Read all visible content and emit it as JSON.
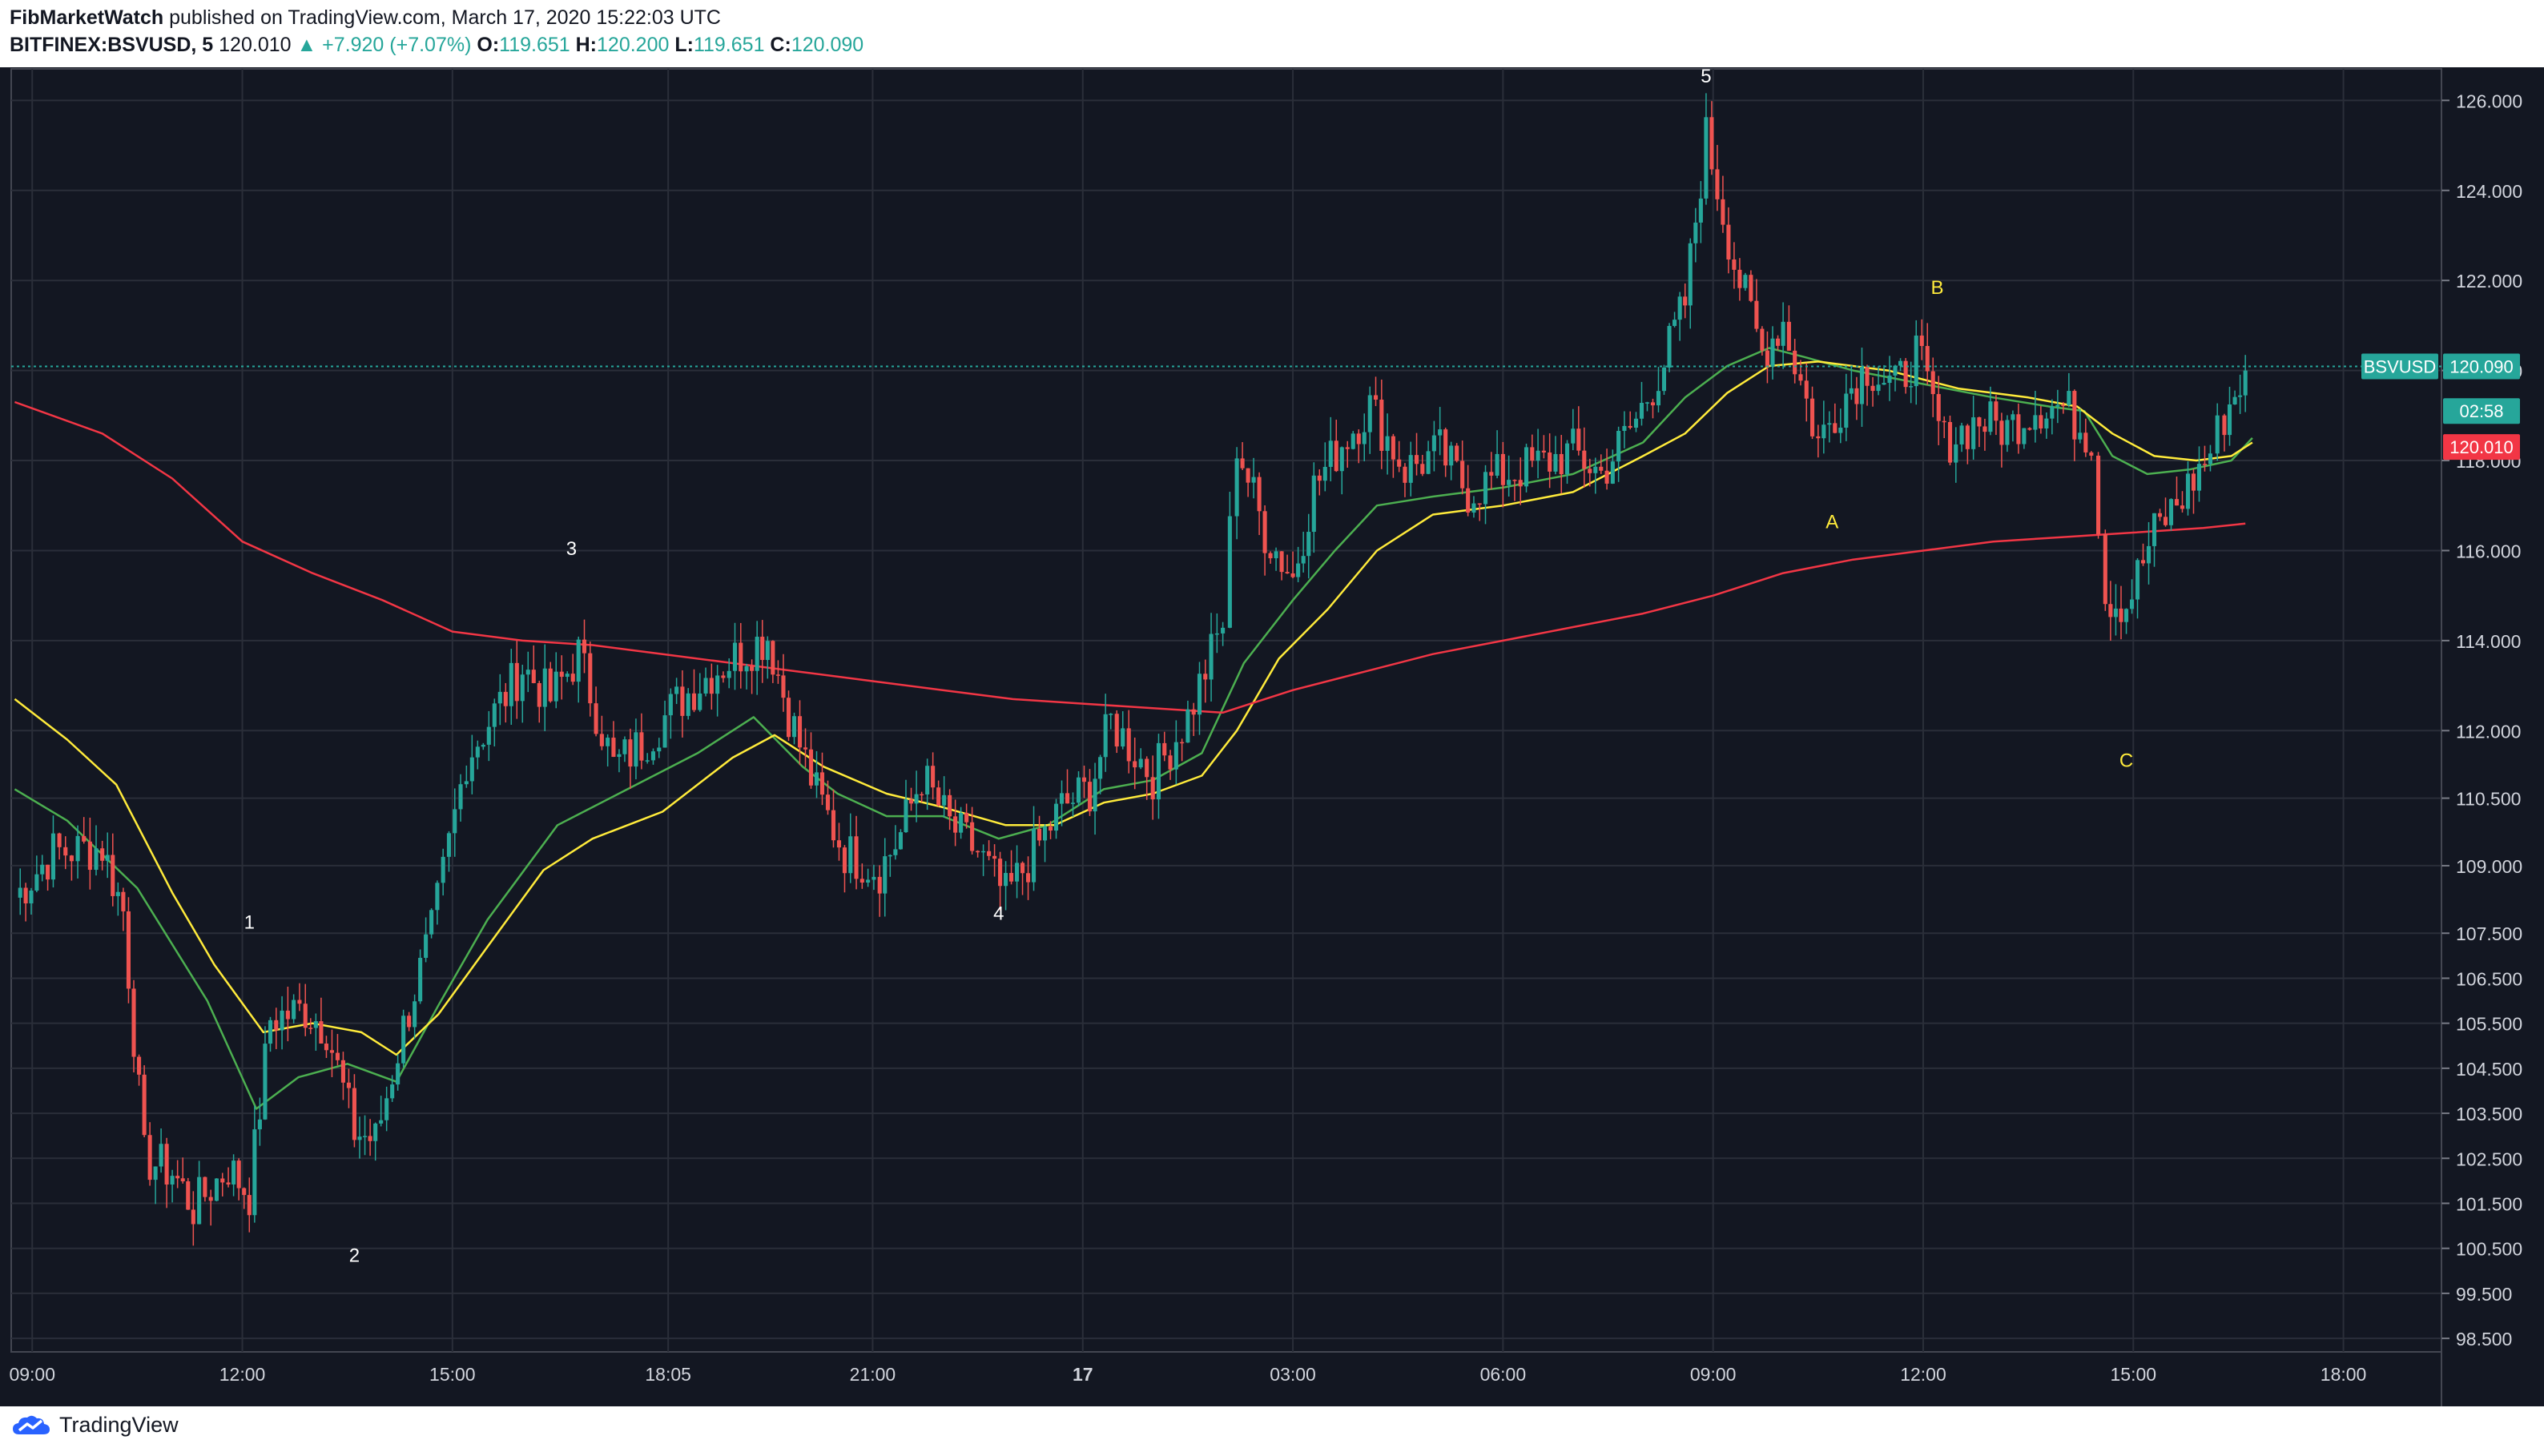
{
  "header": {
    "publisher": "FibMarketWatch",
    "published_text": "published on TradingView.com, March 17, 2020 15:22:03 UTC",
    "symbol": "BITFINEX:BSVUSD, 5",
    "last": "120.010",
    "change": "▲ +7.920 (+7.07%)",
    "o_label": "O:",
    "o_value": "119.651",
    "h_label": "H:",
    "h_value": "120.200",
    "l_label": "L:",
    "l_value": "119.651",
    "c_label": "C:",
    "c_value": "120.090"
  },
  "footer": {
    "brand": "TradingView"
  },
  "colors": {
    "up": "#26a69a",
    "down": "#ef5350",
    "background": "#131722",
    "ema_fast": "#4caf50",
    "ema_mid": "#ffeb3b",
    "ema_slow": "#f23645"
  },
  "chart_data": {
    "type": "candlestick",
    "title": "",
    "y_axis": {
      "ticks": [
        126.0,
        124.0,
        122.0,
        120.0,
        118.0,
        116.0,
        114.0,
        112.0,
        110.5,
        109.0,
        107.5,
        106.5,
        105.5,
        104.5,
        103.5,
        102.5,
        101.5,
        100.5,
        99.5,
        98.5
      ],
      "tick_labels": [
        "126.000",
        "124.000",
        "122.000",
        "120.000",
        "118.000",
        "116.000",
        "114.000",
        "112.000",
        "110.500",
        "109.000",
        "107.500",
        "106.500",
        "105.500",
        "104.500",
        "103.500",
        "102.500",
        "101.500",
        "100.500",
        "99.500",
        "98.500"
      ],
      "range": [
        98.2,
        126.7
      ]
    },
    "x_axis": {
      "ticks": [
        0,
        3,
        6,
        9.08,
        12,
        15,
        18,
        21,
        24,
        27,
        30,
        33
      ],
      "tick_labels": [
        "09:00",
        "12:00",
        "15:00",
        "18:05",
        "21:00",
        "17",
        "03:00",
        "06:00",
        "09:00",
        "12:00",
        "15:00",
        "18:00"
      ],
      "units": "hours since March 16 09:00",
      "range": [
        -0.3,
        34.4
      ]
    },
    "ohlc_anchors": [
      [
        -0.25,
        108.3
      ],
      [
        0.3,
        109.3
      ],
      [
        1.0,
        109.4
      ],
      [
        1.3,
        108.0
      ],
      [
        1.6,
        102.5
      ],
      [
        2.0,
        102.2
      ],
      [
        2.3,
        101.4
      ],
      [
        2.8,
        102.3
      ],
      [
        3.1,
        101.7
      ],
      [
        3.4,
        105.6
      ],
      [
        3.9,
        105.8
      ],
      [
        4.2,
        105.4
      ],
      [
        4.6,
        103.1
      ],
      [
        4.9,
        102.9
      ],
      [
        5.3,
        105.4
      ],
      [
        5.7,
        107.5
      ],
      [
        6.2,
        111.4
      ],
      [
        6.6,
        112.4
      ],
      [
        7.0,
        113.4
      ],
      [
        7.4,
        112.7
      ],
      [
        7.8,
        113.7
      ],
      [
        8.3,
        111.2
      ],
      [
        8.7,
        111.7
      ],
      [
        9.2,
        112.6
      ],
      [
        9.7,
        113.3
      ],
      [
        10.2,
        113.8
      ],
      [
        10.5,
        114.1
      ],
      [
        10.8,
        112.4
      ],
      [
        11.2,
        110.6
      ],
      [
        11.6,
        109.3
      ],
      [
        12.1,
        108.9
      ],
      [
        12.4,
        109.7
      ],
      [
        12.7,
        111.0
      ],
      [
        13.1,
        109.9
      ],
      [
        13.5,
        109.3
      ],
      [
        13.9,
        108.3
      ],
      [
        14.3,
        109.3
      ],
      [
        14.7,
        110.3
      ],
      [
        15.1,
        110.7
      ],
      [
        15.4,
        112.2
      ],
      [
        16.0,
        111.0
      ],
      [
        16.5,
        112.3
      ],
      [
        17.0,
        114.4
      ],
      [
        17.2,
        118.4
      ],
      [
        17.6,
        116.4
      ],
      [
        18.0,
        115.4
      ],
      [
        18.3,
        117.4
      ],
      [
        18.7,
        118.4
      ],
      [
        19.1,
        119.2
      ],
      [
        19.6,
        117.8
      ],
      [
        20.1,
        118.2
      ],
      [
        20.5,
        117.3
      ],
      [
        21.0,
        117.7
      ],
      [
        21.5,
        117.9
      ],
      [
        22.0,
        118.2
      ],
      [
        22.4,
        117.7
      ],
      [
        22.9,
        118.9
      ],
      [
        23.3,
        120.2
      ],
      [
        23.6,
        121.5
      ],
      [
        23.9,
        125.2
      ],
      [
        24.3,
        122.4
      ],
      [
        24.7,
        120.4
      ],
      [
        25.0,
        121.1
      ],
      [
        25.5,
        118.4
      ],
      [
        25.9,
        119.5
      ],
      [
        26.2,
        120.1
      ],
      [
        26.6,
        119.6
      ],
      [
        26.9,
        120.4
      ],
      [
        27.3,
        118.4
      ],
      [
        27.8,
        118.9
      ],
      [
        28.2,
        118.7
      ],
      [
        28.6,
        119.2
      ],
      [
        29.0,
        119.2
      ],
      [
        29.4,
        118.5
      ],
      [
        29.6,
        115.0
      ],
      [
        29.9,
        114.8
      ],
      [
        30.3,
        116.4
      ],
      [
        30.7,
        117.2
      ],
      [
        31.1,
        118.2
      ],
      [
        31.3,
        119.0
      ],
      [
        31.6,
        120.0
      ]
    ],
    "series": [
      {
        "name": "",
        "type": "ema_fast",
        "points": [
          [
            -0.25,
            110.7
          ],
          [
            0.5,
            110.0
          ],
          [
            1.5,
            108.5
          ],
          [
            2.5,
            106.0
          ],
          [
            3.2,
            103.6
          ],
          [
            3.8,
            104.3
          ],
          [
            4.5,
            104.6
          ],
          [
            5.2,
            104.2
          ],
          [
            5.8,
            105.9
          ],
          [
            6.5,
            107.8
          ],
          [
            7.5,
            109.9
          ],
          [
            8.5,
            110.7
          ],
          [
            9.5,
            111.5
          ],
          [
            10.3,
            112.3
          ],
          [
            11.0,
            111.2
          ],
          [
            11.5,
            110.6
          ],
          [
            12.2,
            110.1
          ],
          [
            13.0,
            110.1
          ],
          [
            13.8,
            109.6
          ],
          [
            14.5,
            109.9
          ],
          [
            15.3,
            110.7
          ],
          [
            16.0,
            110.9
          ],
          [
            16.7,
            111.5
          ],
          [
            17.3,
            113.5
          ],
          [
            18.0,
            114.9
          ],
          [
            18.6,
            116.0
          ],
          [
            19.2,
            117.0
          ],
          [
            20.0,
            117.2
          ],
          [
            21.0,
            117.4
          ],
          [
            22.0,
            117.7
          ],
          [
            23.0,
            118.4
          ],
          [
            23.6,
            119.4
          ],
          [
            24.2,
            120.1
          ],
          [
            24.8,
            120.5
          ],
          [
            25.3,
            120.3
          ],
          [
            26.0,
            120.0
          ],
          [
            27.0,
            119.7
          ],
          [
            28.0,
            119.4
          ],
          [
            28.8,
            119.2
          ],
          [
            29.3,
            119.1
          ],
          [
            29.7,
            118.1
          ],
          [
            30.2,
            117.7
          ],
          [
            30.8,
            117.8
          ],
          [
            31.4,
            118.0
          ],
          [
            31.7,
            118.5
          ]
        ]
      },
      {
        "name": "",
        "type": "ema_mid",
        "points": [
          [
            -0.25,
            112.7
          ],
          [
            0.5,
            111.8
          ],
          [
            1.2,
            110.8
          ],
          [
            2.0,
            108.4
          ],
          [
            2.6,
            106.8
          ],
          [
            3.3,
            105.3
          ],
          [
            4.0,
            105.5
          ],
          [
            4.7,
            105.3
          ],
          [
            5.2,
            104.8
          ],
          [
            5.8,
            105.7
          ],
          [
            6.5,
            107.2
          ],
          [
            7.3,
            108.9
          ],
          [
            8.0,
            109.6
          ],
          [
            9.0,
            110.2
          ],
          [
            10.0,
            111.4
          ],
          [
            10.6,
            111.9
          ],
          [
            11.3,
            111.2
          ],
          [
            12.2,
            110.6
          ],
          [
            13.0,
            110.3
          ],
          [
            13.9,
            109.9
          ],
          [
            14.6,
            109.9
          ],
          [
            15.3,
            110.4
          ],
          [
            16.0,
            110.6
          ],
          [
            16.7,
            111.0
          ],
          [
            17.2,
            112.0
          ],
          [
            17.8,
            113.6
          ],
          [
            18.5,
            114.7
          ],
          [
            19.2,
            116.0
          ],
          [
            20.0,
            116.8
          ],
          [
            21.0,
            117.0
          ],
          [
            22.0,
            117.3
          ],
          [
            23.0,
            118.1
          ],
          [
            23.6,
            118.6
          ],
          [
            24.2,
            119.5
          ],
          [
            24.8,
            120.1
          ],
          [
            25.5,
            120.2
          ],
          [
            26.5,
            120.0
          ],
          [
            27.5,
            119.6
          ],
          [
            28.5,
            119.4
          ],
          [
            29.2,
            119.2
          ],
          [
            29.7,
            118.6
          ],
          [
            30.3,
            118.1
          ],
          [
            30.9,
            118.0
          ],
          [
            31.4,
            118.1
          ],
          [
            31.7,
            118.4
          ]
        ]
      },
      {
        "name": "",
        "type": "ema_slow",
        "points": [
          [
            -0.25,
            119.3
          ],
          [
            1.0,
            118.6
          ],
          [
            2.0,
            117.6
          ],
          [
            3.0,
            116.2
          ],
          [
            4.0,
            115.5
          ],
          [
            5.0,
            114.9
          ],
          [
            6.0,
            114.2
          ],
          [
            7.0,
            114.0
          ],
          [
            8.0,
            113.9
          ],
          [
            9.0,
            113.7
          ],
          [
            10.0,
            113.5
          ],
          [
            11.0,
            113.3
          ],
          [
            12.0,
            113.1
          ],
          [
            13.0,
            112.9
          ],
          [
            14.0,
            112.7
          ],
          [
            15.0,
            112.6
          ],
          [
            16.0,
            112.5
          ],
          [
            17.0,
            112.4
          ],
          [
            18.0,
            112.9
          ],
          [
            19.0,
            113.3
          ],
          [
            20.0,
            113.7
          ],
          [
            21.0,
            114.0
          ],
          [
            22.0,
            114.3
          ],
          [
            23.0,
            114.6
          ],
          [
            24.0,
            115.0
          ],
          [
            25.0,
            115.5
          ],
          [
            26.0,
            115.8
          ],
          [
            27.0,
            116.0
          ],
          [
            28.0,
            116.2
          ],
          [
            29.0,
            116.3
          ],
          [
            30.0,
            116.4
          ],
          [
            31.0,
            116.5
          ],
          [
            31.6,
            116.6
          ]
        ]
      }
    ],
    "price_line": 120.09,
    "price_labels": [
      {
        "text": "BSVUSD",
        "price": 120.09,
        "color": "#26a69a"
      },
      {
        "text": "120.090",
        "price": 120.09,
        "color": "#26a69a"
      },
      {
        "text": "02:58",
        "price": 119.1,
        "color": "#26a69a"
      },
      {
        "text": "120.010",
        "price": 118.3,
        "color": "#f23645"
      }
    ],
    "wave_labels": [
      {
        "text": "1",
        "x": 3.1,
        "y": 107.6,
        "color": "#ffffff"
      },
      {
        "text": "2",
        "x": 4.6,
        "y": 100.2,
        "color": "#ffffff"
      },
      {
        "text": "3",
        "x": 7.7,
        "y": 115.9,
        "color": "#ffffff"
      },
      {
        "text": "4",
        "x": 13.8,
        "y": 107.8,
        "color": "#ffffff"
      },
      {
        "text": "5",
        "x": 23.9,
        "y": 126.4,
        "color": "#ffffff"
      },
      {
        "text": "A",
        "x": 25.7,
        "y": 116.5,
        "color": "#ffeb3b"
      },
      {
        "text": "B",
        "x": 27.2,
        "y": 121.7,
        "color": "#ffeb3b"
      },
      {
        "text": "C",
        "x": 29.9,
        "y": 111.2,
        "color": "#ffeb3b"
      }
    ]
  }
}
